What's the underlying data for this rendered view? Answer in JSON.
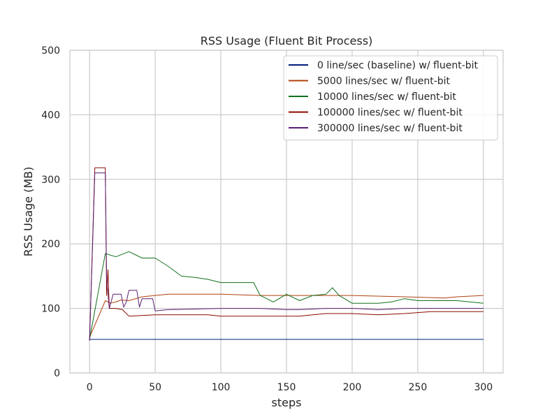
{
  "chart_data": {
    "type": "line",
    "title": "RSS Usage (Fluent Bit Process)",
    "xlabel": "steps",
    "ylabel": "RSS Usage (MB)",
    "xlim": [
      -15,
      315
    ],
    "ylim": [
      0,
      500
    ],
    "xticks": [
      0,
      50,
      100,
      150,
      200,
      250,
      300
    ],
    "yticks": [
      0,
      100,
      200,
      300,
      400,
      500
    ],
    "grid": true,
    "legend_position": "top-right",
    "series": [
      {
        "name": "0 line/sec (baseline) w/ fluent-bit",
        "color": "#001c7f",
        "points": [
          [
            0,
            52
          ],
          [
            300,
            52
          ]
        ]
      },
      {
        "name": "5000 lines/sec w/ fluent-bit",
        "color": "#b1400d",
        "points": [
          [
            0,
            55
          ],
          [
            12,
            112
          ],
          [
            16,
            108
          ],
          [
            20,
            110
          ],
          [
            24,
            113
          ],
          [
            30,
            112
          ],
          [
            40,
            118
          ],
          [
            60,
            122
          ],
          [
            100,
            122
          ],
          [
            130,
            120
          ],
          [
            160,
            120
          ],
          [
            200,
            120
          ],
          [
            240,
            118
          ],
          [
            270,
            116
          ],
          [
            280,
            118
          ],
          [
            300,
            120
          ]
        ]
      },
      {
        "name": "10000 lines/sec w/ fluent-bit",
        "color": "#12711c",
        "points": [
          [
            0,
            52
          ],
          [
            12,
            185
          ],
          [
            20,
            180
          ],
          [
            30,
            188
          ],
          [
            40,
            178
          ],
          [
            50,
            178
          ],
          [
            60,
            165
          ],
          [
            70,
            150
          ],
          [
            80,
            148
          ],
          [
            90,
            145
          ],
          [
            100,
            140
          ],
          [
            110,
            140
          ],
          [
            120,
            140
          ],
          [
            125,
            140
          ],
          [
            130,
            120
          ],
          [
            140,
            110
          ],
          [
            150,
            122
          ],
          [
            160,
            112
          ],
          [
            170,
            120
          ],
          [
            180,
            122
          ],
          [
            185,
            132
          ],
          [
            190,
            120
          ],
          [
            200,
            108
          ],
          [
            220,
            108
          ],
          [
            230,
            110
          ],
          [
            240,
            115
          ],
          [
            250,
            112
          ],
          [
            260,
            112
          ],
          [
            280,
            112
          ],
          [
            300,
            108
          ]
        ]
      },
      {
        "name": "100000 lines/sec w/ fluent-bit",
        "color": "#8c0800",
        "points": [
          [
            0,
            50
          ],
          [
            4,
            318
          ],
          [
            12,
            318
          ],
          [
            13,
            120
          ],
          [
            14,
            160
          ],
          [
            15,
            100
          ],
          [
            20,
            100
          ],
          [
            25,
            98
          ],
          [
            30,
            88
          ],
          [
            50,
            90
          ],
          [
            90,
            90
          ],
          [
            100,
            88
          ],
          [
            130,
            88
          ],
          [
            150,
            88
          ],
          [
            160,
            88
          ],
          [
            170,
            90
          ],
          [
            180,
            92
          ],
          [
            200,
            92
          ],
          [
            220,
            90
          ],
          [
            240,
            92
          ],
          [
            260,
            95
          ],
          [
            300,
            95
          ]
        ]
      },
      {
        "name": "300000 lines/sec w/ fluent-bit",
        "color": "#591e71",
        "points": [
          [
            0,
            50
          ],
          [
            4,
            310
          ],
          [
            12,
            310
          ],
          [
            13,
            145
          ],
          [
            15,
            100
          ],
          [
            18,
            122
          ],
          [
            24,
            122
          ],
          [
            26,
            102
          ],
          [
            28,
            110
          ],
          [
            30,
            128
          ],
          [
            36,
            128
          ],
          [
            38,
            102
          ],
          [
            40,
            115
          ],
          [
            48,
            115
          ],
          [
            50,
            96
          ],
          [
            60,
            98
          ],
          [
            100,
            100
          ],
          [
            130,
            100
          ],
          [
            150,
            98
          ],
          [
            160,
            98
          ],
          [
            180,
            100
          ],
          [
            200,
            100
          ],
          [
            220,
            98
          ],
          [
            240,
            100
          ],
          [
            260,
            100
          ],
          [
            280,
            100
          ],
          [
            300,
            100
          ]
        ]
      }
    ]
  }
}
